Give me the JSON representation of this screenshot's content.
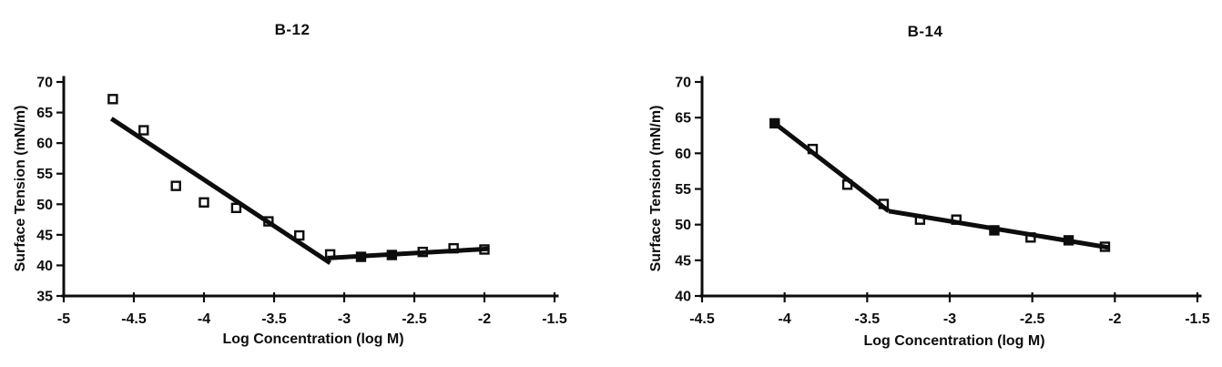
{
  "colors": {
    "ink": "#0d0d0d",
    "paper": "#ffffff"
  },
  "chart_data": [
    {
      "id": "b12",
      "type": "scatter",
      "title": "B-12",
      "xlabel": "Log Concentration (log M)",
      "ylabel": "Surface Tension (mN/m)",
      "xlim": [
        -5,
        -1.5
      ],
      "ylim": [
        35,
        70
      ],
      "xticks": [
        -5,
        -4.5,
        -4,
        -3.5,
        -3,
        -2.5,
        -2,
        -1.5
      ],
      "yticks": [
        35,
        40,
        45,
        50,
        55,
        60,
        65,
        70
      ],
      "grid": false,
      "legend": "none",
      "marker": "square",
      "points": [
        {
          "x": -4.65,
          "y": 67.2,
          "filled": false
        },
        {
          "x": -4.43,
          "y": 62.1,
          "filled": false
        },
        {
          "x": -4.2,
          "y": 53.0,
          "filled": false
        },
        {
          "x": -4.0,
          "y": 50.3,
          "filled": false
        },
        {
          "x": -3.77,
          "y": 49.4,
          "filled": false
        },
        {
          "x": -3.54,
          "y": 47.2,
          "filled": false
        },
        {
          "x": -3.32,
          "y": 44.9,
          "filled": false
        },
        {
          "x": -3.1,
          "y": 41.8,
          "filled": false
        },
        {
          "x": -2.88,
          "y": 41.4,
          "filled": true
        },
        {
          "x": -2.66,
          "y": 41.7,
          "filled": true
        },
        {
          "x": -2.44,
          "y": 42.2,
          "filled": false
        },
        {
          "x": -2.22,
          "y": 42.8,
          "filled": false
        },
        {
          "x": -2.0,
          "y": 42.6,
          "filled": false
        }
      ],
      "trend_segments": [
        {
          "x1": -4.66,
          "y1": 64.0,
          "x2": -3.1,
          "y2": 40.4
        },
        {
          "x1": -3.12,
          "y1": 41.2,
          "x2": -1.97,
          "y2": 42.7
        }
      ]
    },
    {
      "id": "b14",
      "type": "scatter",
      "title": "B-14",
      "xlabel": "Log Concentration (log M)",
      "ylabel": "Surface Tension (mN/m)",
      "xlim": [
        -4.5,
        -1.5
      ],
      "ylim": [
        40,
        70
      ],
      "xticks": [
        -4.5,
        -4,
        -3.5,
        -3,
        -2.5,
        -2,
        -1.5
      ],
      "yticks": [
        40,
        45,
        50,
        55,
        60,
        65,
        70
      ],
      "grid": false,
      "legend": "none",
      "marker": "square",
      "points": [
        {
          "x": -4.06,
          "y": 64.2,
          "filled": true
        },
        {
          "x": -3.83,
          "y": 60.6,
          "filled": false
        },
        {
          "x": -3.62,
          "y": 55.6,
          "filled": false
        },
        {
          "x": -3.4,
          "y": 52.9,
          "filled": false
        },
        {
          "x": -3.18,
          "y": 50.7,
          "filled": false
        },
        {
          "x": -2.96,
          "y": 50.7,
          "filled": false
        },
        {
          "x": -2.73,
          "y": 49.2,
          "filled": true
        },
        {
          "x": -2.51,
          "y": 48.2,
          "filled": false
        },
        {
          "x": -2.28,
          "y": 47.8,
          "filled": true
        },
        {
          "x": -2.06,
          "y": 46.9,
          "filled": false
        }
      ],
      "trend_segments": [
        {
          "x1": -4.06,
          "y1": 64.2,
          "x2": -3.37,
          "y2": 51.9
        },
        {
          "x1": -3.37,
          "y1": 51.9,
          "x2": -2.04,
          "y2": 46.8
        }
      ]
    }
  ]
}
